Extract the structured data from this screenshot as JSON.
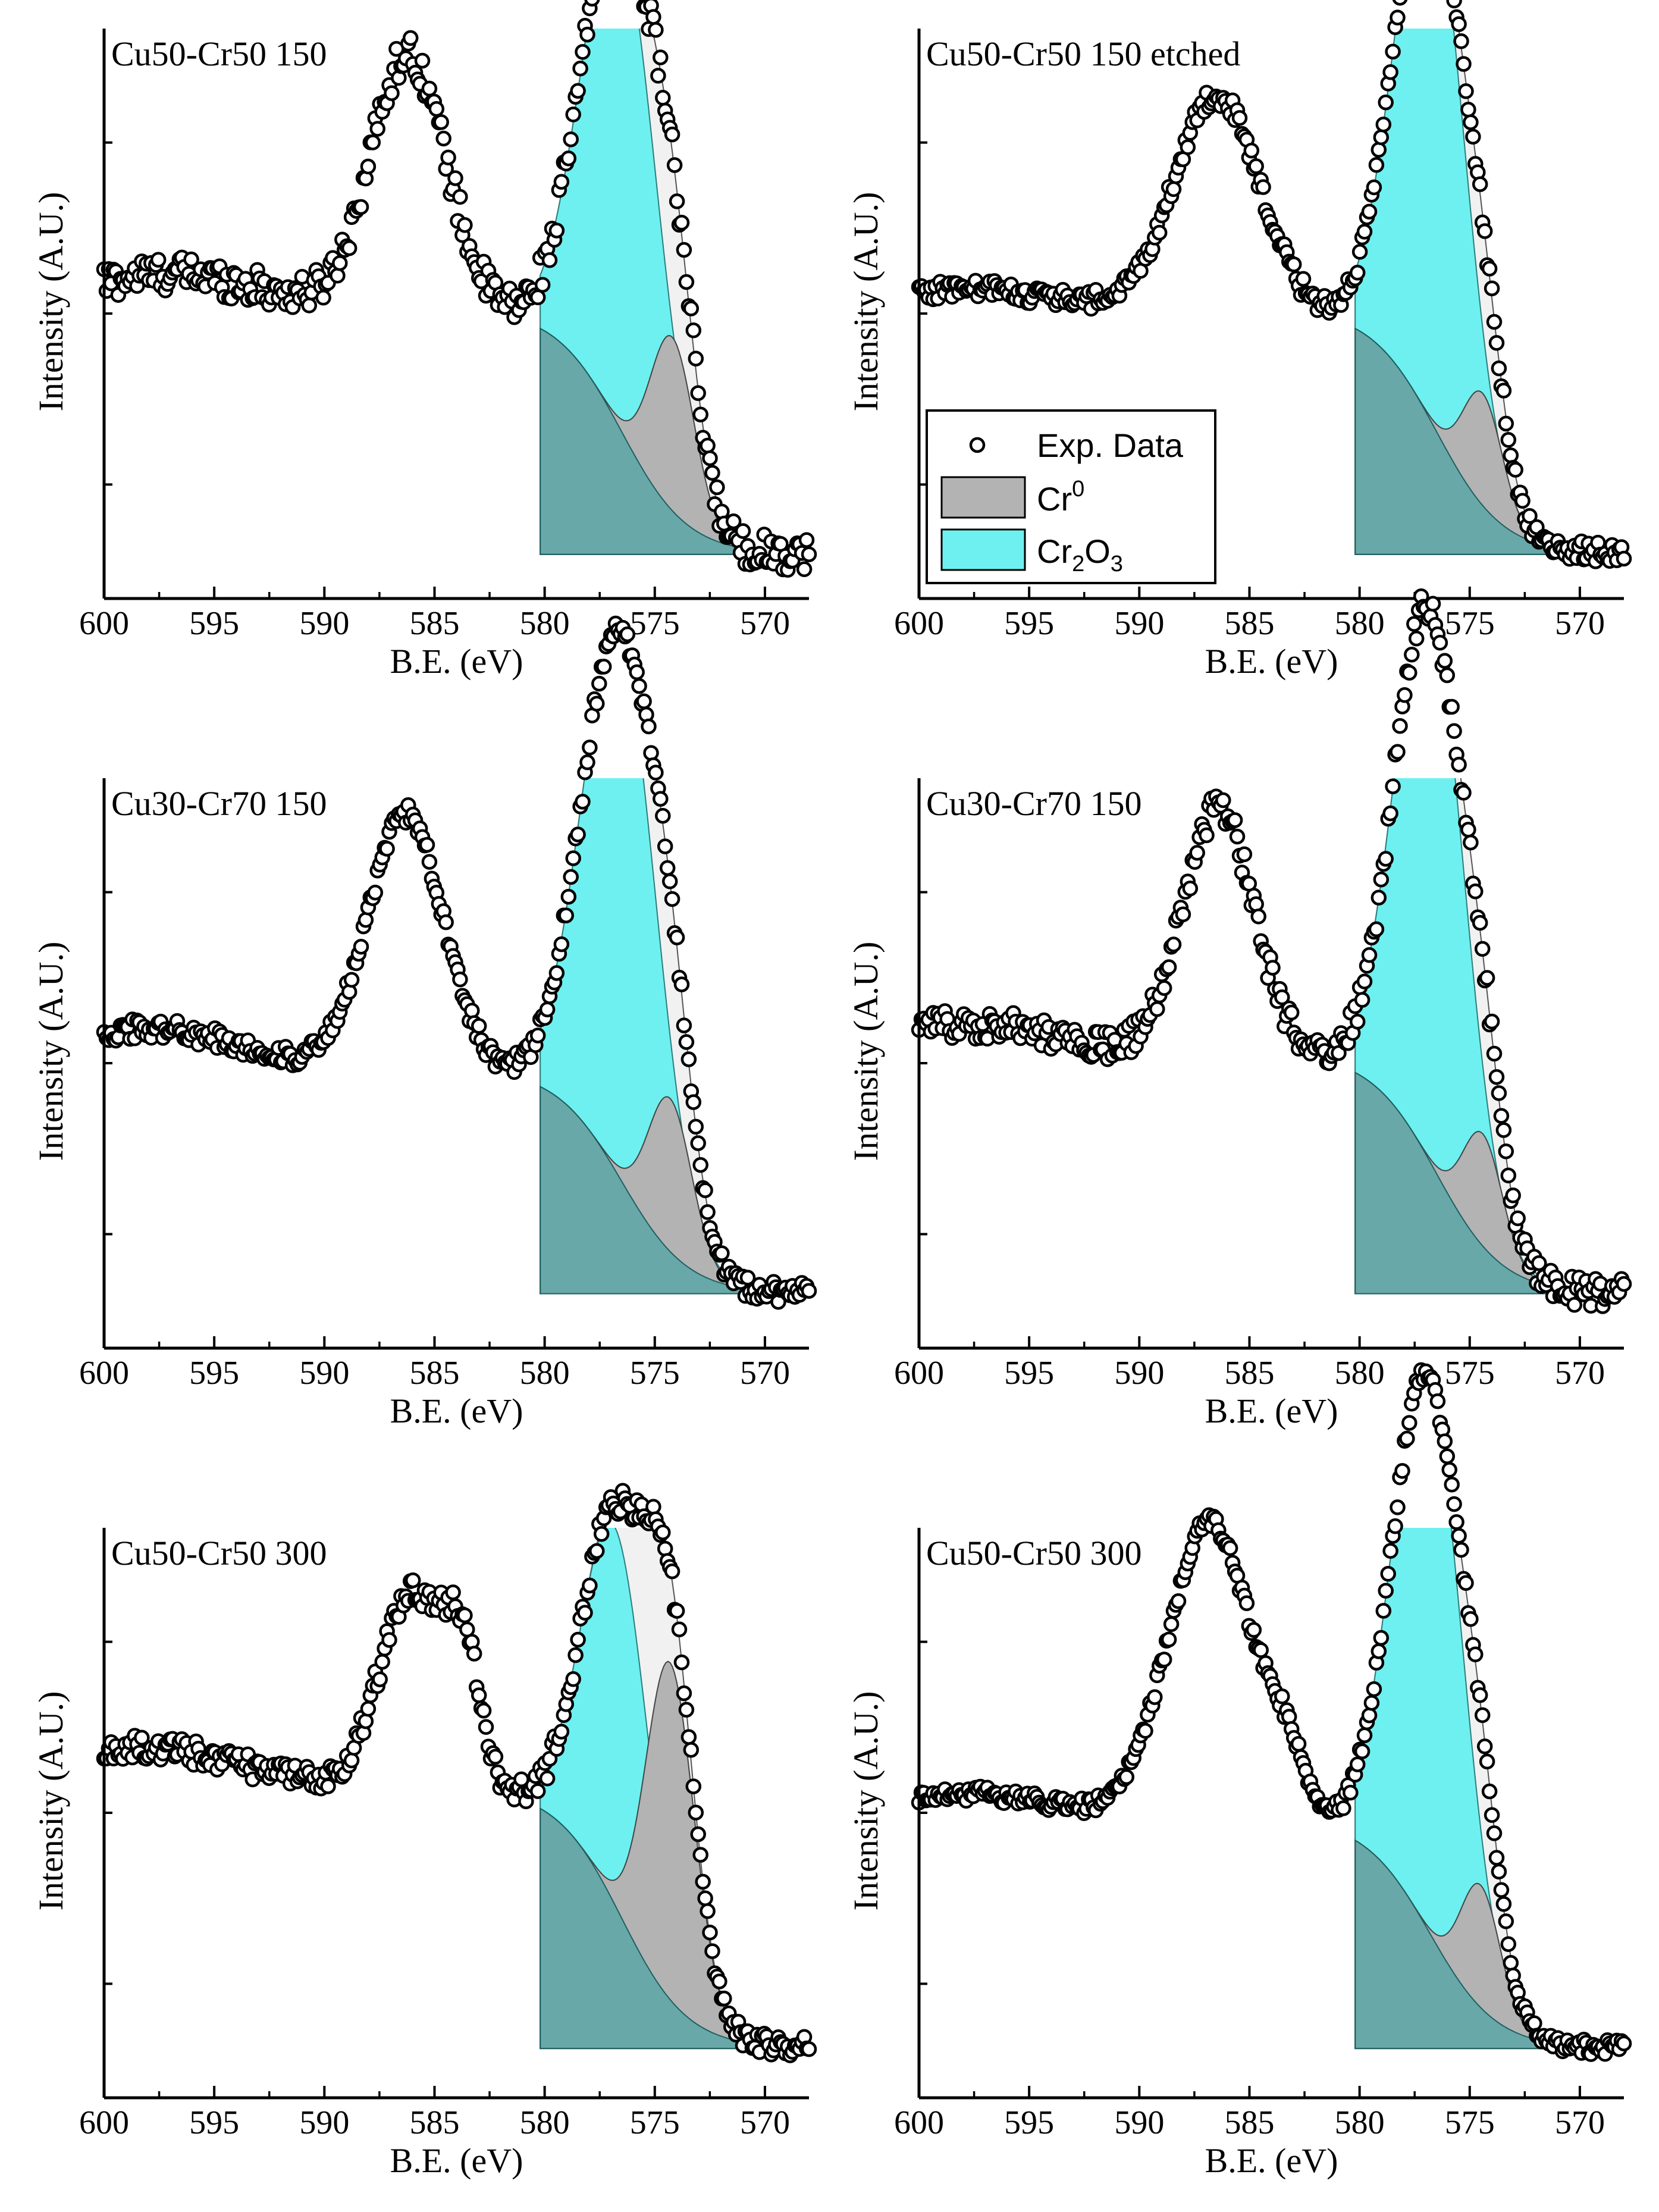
{
  "colors": {
    "cr0_fill": "#b3b3b3",
    "cr2o3_fill": "#6ef0f0",
    "envelope_fill": "#f1f1f1",
    "marker_stroke": "#000000",
    "marker_fill": "#ffffff"
  },
  "legend": {
    "exp_label": "Exp. Data",
    "cr0_label": "Cr",
    "cr0_sup": "0",
    "cr2o3_label_a": "Cr",
    "cr2o3_sub_a": "2",
    "cr2o3_label_b": "O",
    "cr2o3_sub_b": "3",
    "panel": 1
  },
  "chart_data": [
    {
      "type": "scatter",
      "title": "Cu50-Cr50 150",
      "xlabel": "B.E. (eV)",
      "ylabel": "Intensity (A.U.)",
      "xlim": [
        600,
        568
      ],
      "x_reversed": true,
      "xticks": [
        600,
        595,
        590,
        585,
        580,
        575,
        570
      ],
      "params": {
        "bgL": 0.52,
        "bgR": 0.04,
        "bgC": 576.5,
        "bgW": 1.5,
        "cr0A": 0.34,
        "cr0C": 574.2,
        "cr0W": 1.0,
        "oxA": 0.98,
        "oxC": 576.6,
        "oxW": 1.7,
        "satA": 0.5,
        "satC": 586.2,
        "satW": 1.7,
        "lowA": 0.07,
        "lowC": 597,
        "lowW": 4,
        "noise": 0.035
      }
    },
    {
      "type": "scatter",
      "title": "Cu50-Cr50 150 etched",
      "xlabel": "B.E. (eV)",
      "ylabel": "Intensity (A.U.)",
      "xlim": [
        600,
        568
      ],
      "x_reversed": true,
      "xticks": [
        600,
        595,
        590,
        585,
        580,
        575,
        570
      ],
      "params": {
        "bgL": 0.52,
        "bgR": 0.04,
        "bgC": 576.5,
        "bgW": 1.5,
        "cr0A": 0.22,
        "cr0C": 574.4,
        "cr0W": 0.9,
        "oxA": 1.06,
        "oxC": 576.8,
        "oxW": 1.6,
        "satA": 0.42,
        "satC": 586.5,
        "satW": 1.9,
        "lowA": 0.04,
        "lowC": 598,
        "lowW": 4,
        "noise": 0.02
      }
    },
    {
      "type": "scatter",
      "title": "Cu30-Cr70 150",
      "xlabel": "B.E. (eV)",
      "ylabel": "Intensity (A.U.)",
      "xlim": [
        600,
        568
      ],
      "x_reversed": true,
      "xticks": [
        600,
        595,
        590,
        585,
        580,
        575,
        570
      ],
      "params": {
        "bgL": 0.5,
        "bgR": 0.06,
        "bgC": 576.5,
        "bgW": 1.5,
        "cr0A": 0.3,
        "cr0C": 574.3,
        "cr0W": 1.0,
        "oxA": 1.05,
        "oxC": 576.6,
        "oxW": 1.7,
        "satA": 0.5,
        "satC": 586.3,
        "satW": 1.7,
        "lowA": 0.08,
        "lowC": 598,
        "lowW": 4,
        "noise": 0.02
      }
    },
    {
      "type": "scatter",
      "title": "Cu30-Cr70 150",
      "xlabel": "B.E. (eV)",
      "ylabel": "Intensity (A.U.)",
      "xlim": [
        600,
        568
      ],
      "x_reversed": true,
      "xticks": [
        600,
        595,
        590,
        585,
        580,
        575,
        570
      ],
      "params": {
        "bgL": 0.53,
        "bgR": 0.06,
        "bgC": 576.5,
        "bgW": 1.5,
        "cr0A": 0.22,
        "cr0C": 574.4,
        "cr0W": 0.9,
        "oxA": 1.08,
        "oxC": 576.8,
        "oxW": 1.6,
        "satA": 0.48,
        "satC": 586.4,
        "satW": 1.6,
        "lowA": 0.06,
        "lowC": 598,
        "lowW": 4,
        "noise": 0.03
      }
    },
    {
      "type": "scatter",
      "title": "Cu50-Cr50 300",
      "xlabel": "B.E. (eV)",
      "ylabel": "Intensity (A.U.)",
      "xlim": [
        600,
        568
      ],
      "x_reversed": true,
      "xticks": [
        600,
        595,
        590,
        585,
        580,
        575,
        570
      ],
      "params": {
        "bgL": 0.56,
        "bgR": 0.05,
        "bgC": 576.5,
        "bgW": 1.5,
        "cr0A": 0.66,
        "cr0C": 574.3,
        "cr0W": 1.1,
        "oxA": 0.74,
        "oxC": 576.8,
        "oxW": 1.5,
        "satA": 0.38,
        "satC": 586.0,
        "satW": 1.5,
        "sat2A": 0.22,
        "sat2C": 583.7,
        "sat2W": 0.8,
        "lowA": 0.08,
        "lowC": 598,
        "lowW": 4,
        "noise": 0.025
      }
    },
    {
      "type": "scatter",
      "title": "Cu50-Cr50 300",
      "xlabel": "B.E. (eV)",
      "ylabel": "Intensity (A.U.)",
      "xlim": [
        600,
        568
      ],
      "x_reversed": true,
      "xticks": [
        600,
        595,
        590,
        585,
        580,
        575,
        570
      ],
      "params": {
        "bgL": 0.5,
        "bgR": 0.05,
        "bgC": 576.8,
        "bgW": 1.5,
        "cr0A": 0.24,
        "cr0C": 574.5,
        "cr0W": 0.9,
        "oxA": 1.08,
        "oxC": 576.9,
        "oxW": 1.6,
        "satA": 0.58,
        "satC": 586.8,
        "satW": 1.9,
        "sat2A": 0.1,
        "sat2C": 583.4,
        "sat2W": 0.9,
        "lowA": 0.05,
        "lowC": 598,
        "lowW": 4,
        "noise": 0.015
      }
    }
  ]
}
